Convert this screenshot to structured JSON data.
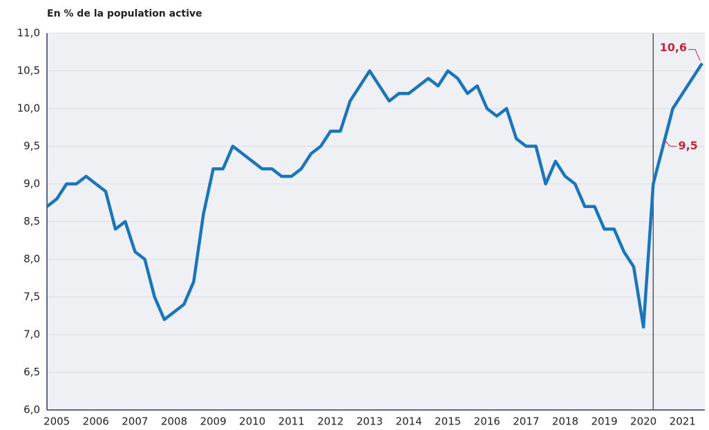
{
  "chart_data": {
    "type": "line",
    "title": "En % de la population active",
    "categories": [
      null,
      "2005",
      null,
      null,
      null,
      "2006",
      null,
      null,
      null,
      "2007",
      null,
      null,
      null,
      "2008",
      null,
      null,
      null,
      "2009",
      null,
      null,
      null,
      "2010",
      null,
      null,
      null,
      "2011",
      null,
      null,
      null,
      "2012",
      null,
      null,
      null,
      "2013",
      null,
      null,
      null,
      "2014",
      null,
      null,
      null,
      "2015",
      null,
      null,
      null,
      "2016",
      null,
      null,
      null,
      "2017",
      null,
      null,
      null,
      "2018",
      null,
      null,
      null,
      "2019",
      null,
      null,
      null,
      "2020",
      null,
      null,
      null,
      "2021",
      null,
      null
    ],
    "series": [
      {
        "color": "#1b75bb",
        "values": [
          8.7,
          8.8,
          9.0,
          9.0,
          9.1,
          9.0,
          8.9,
          8.4,
          8.5,
          8.1,
          8.0,
          7.5,
          7.2,
          7.3,
          7.4,
          7.7,
          8.6,
          9.2,
          9.2,
          9.5,
          9.4,
          9.3,
          9.2,
          9.2,
          9.1,
          9.1,
          9.2,
          9.4,
          9.5,
          9.7,
          9.7,
          10.1,
          10.3,
          10.5,
          10.3,
          10.1,
          10.2,
          10.2,
          10.3,
          10.4,
          10.3,
          10.5,
          10.4,
          10.2,
          10.3,
          10.0,
          9.9,
          10.0,
          9.6,
          9.5,
          9.5,
          9.0,
          9.3,
          9.1,
          9.0,
          8.7,
          8.7,
          8.4,
          8.4,
          8.1,
          7.9,
          7.1,
          9.0,
          9.5,
          10.0,
          10.2,
          10.4,
          10.6
        ]
      }
    ],
    "value_labels": [
      null,
      null,
      null,
      null,
      null,
      null,
      null,
      null,
      null,
      null,
      null,
      null,
      null,
      null,
      null,
      null,
      null,
      null,
      null,
      null,
      null,
      null,
      null,
      null,
      null,
      null,
      null,
      null,
      null,
      null,
      null,
      null,
      null,
      null,
      null,
      null,
      null,
      null,
      null,
      null,
      null,
      null,
      null,
      null,
      null,
      null,
      null,
      null,
      null,
      null,
      null,
      null,
      null,
      null,
      null,
      null,
      null,
      null,
      null,
      null,
      null,
      null,
      null,
      "9,5",
      null,
      null,
      null,
      "10,6"
    ],
    "ylim": [
      6,
      11
    ],
    "yticks": [
      {
        "value": 6,
        "label": "6,0"
      },
      {
        "value": 6.5,
        "label": "6,5"
      },
      {
        "value": 7,
        "label": "7,0"
      },
      {
        "value": 7.5,
        "label": "7,5"
      },
      {
        "value": 8,
        "label": "8,0"
      },
      {
        "value": 8.5,
        "label": "8,5"
      },
      {
        "value": 9,
        "label": "9,0"
      },
      {
        "value": 9.5,
        "label": "9,5"
      },
      {
        "value": 10,
        "label": "10,0"
      },
      {
        "value": 10.5,
        "label": "10,5"
      },
      {
        "value": 11,
        "label": "11,0"
      }
    ],
    "grid": true
  }
}
